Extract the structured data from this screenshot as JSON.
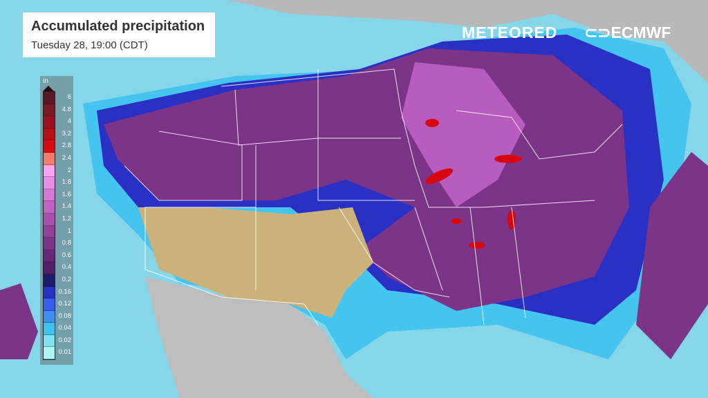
{
  "title": "Accumulated precipitation",
  "subtitle": "Tuesday 28, 19:00 (CDT)",
  "brand": {
    "meteored": "METEORED",
    "ecmwf": "ECMWF"
  },
  "legend": {
    "unit": "in",
    "items": [
      {
        "label": "6",
        "color": "#5a1a24"
      },
      {
        "label": "4.8",
        "color": "#7a1a22"
      },
      {
        "label": "4",
        "color": "#9a1420"
      },
      {
        "label": "3.2",
        "color": "#b80e18"
      },
      {
        "label": "2.8",
        "color": "#d80810"
      },
      {
        "label": "2.4",
        "color": "#f27c6c"
      },
      {
        "label": "2",
        "color": "#fca4f2"
      },
      {
        "label": "1.8",
        "color": "#e68ce4"
      },
      {
        "label": "1.6",
        "color": "#d478d6"
      },
      {
        "label": "1.4",
        "color": "#c064c4"
      },
      {
        "label": "1.2",
        "color": "#a850b0"
      },
      {
        "label": "1",
        "color": "#924098"
      },
      {
        "label": "0.8",
        "color": "#7c3488"
      },
      {
        "label": "0.6",
        "color": "#662878"
      },
      {
        "label": "0.4",
        "color": "#521e68"
      },
      {
        "label": "0.2",
        "color": "#1c1a6a"
      },
      {
        "label": "0.16",
        "color": "#2a30c4"
      },
      {
        "label": "0.12",
        "color": "#3a5cf0"
      },
      {
        "label": "0.08",
        "color": "#3c8ef0"
      },
      {
        "label": "0.04",
        "color": "#3cc4ee"
      },
      {
        "label": "0.02",
        "color": "#7ee2f0"
      },
      {
        "label": "0.01",
        "color": "#aaf4f6"
      }
    ]
  }
}
